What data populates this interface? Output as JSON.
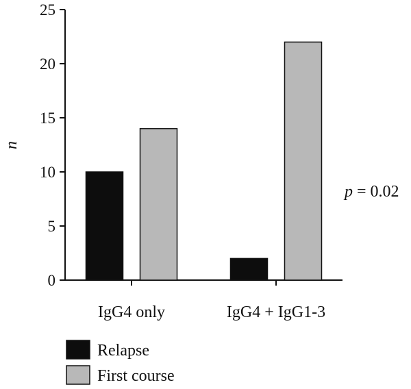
{
  "chart_data": {
    "type": "bar",
    "categories": [
      "IgG4 only",
      "IgG4 + IgG1-3"
    ],
    "series": [
      {
        "name": "Relapse",
        "values": [
          10,
          2
        ],
        "color": "#0d0d0d"
      },
      {
        "name": "First course",
        "values": [
          14,
          22
        ],
        "color": "#b8b8b8"
      }
    ],
    "ylabel": "n",
    "xlabel": "",
    "ylim": [
      0,
      25
    ],
    "yticks": [
      0,
      5,
      10,
      15,
      20,
      25
    ],
    "ytick_labels": [
      "0",
      "5",
      "10",
      "15",
      "20",
      "25"
    ],
    "grid": false,
    "legend_position": "bottom-left",
    "annotation": {
      "variable": "p",
      "text": " = 0.02"
    }
  }
}
